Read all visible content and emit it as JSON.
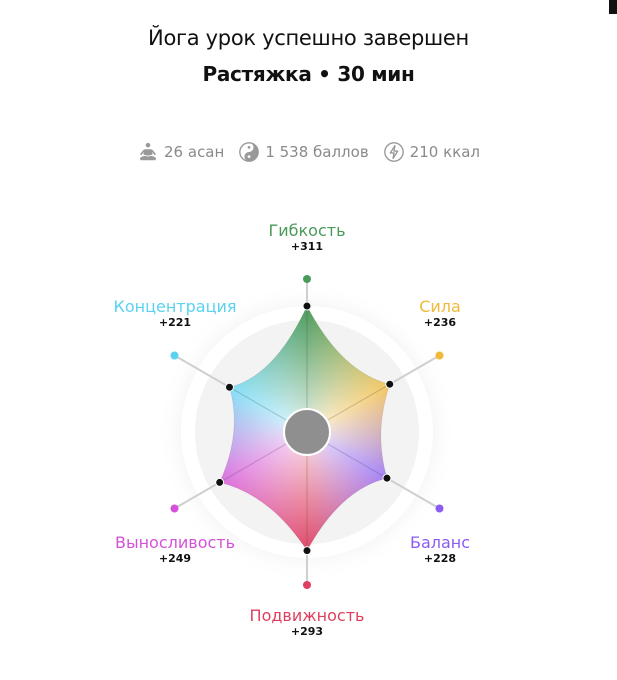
{
  "header": {
    "title": "Йога урок успешно завершен",
    "subtitle": "Растяжка • 30 мин"
  },
  "stats": [
    {
      "icon": "meditation-icon",
      "text": "26 асан"
    },
    {
      "icon": "yin-yang-icon",
      "text": "1 538 баллов"
    },
    {
      "icon": "lightning-icon",
      "text": "210 ккал"
    }
  ],
  "chart_data": {
    "type": "radar",
    "categories": [
      "Гибкость",
      "Сила",
      "Баланс",
      "Подвижность",
      "Выносливость",
      "Концентрация"
    ],
    "labels": [
      "+311",
      "+236",
      "+228",
      "+293",
      "+249",
      "+221"
    ],
    "values": [
      311,
      236,
      228,
      293,
      249,
      221
    ],
    "colors": [
      "#4a9a5a",
      "#f0b93a",
      "#8a5cf2",
      "#df3f5e",
      "#d452d8",
      "#5ad2f2"
    ]
  }
}
